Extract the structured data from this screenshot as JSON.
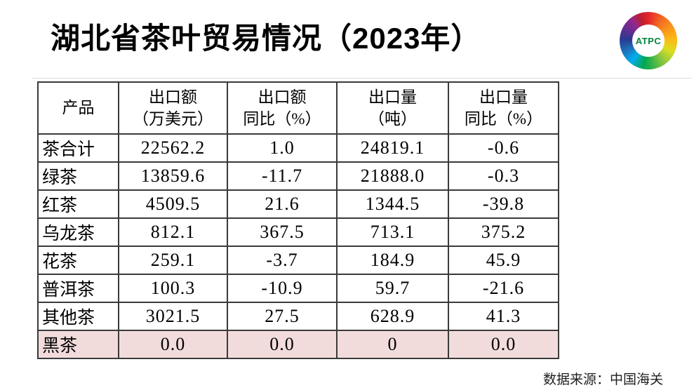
{
  "title": "湖北省茶叶贸易情况（2023年）",
  "logo": {
    "text": "ATPC",
    "text_color": "#00843d"
  },
  "table": {
    "highlight_color": "#f2dcdb",
    "border_color": "#3a3a3a",
    "columns": [
      "产品",
      "出口额\n（万美元）",
      "出口额\n同比（%）",
      "出口量\n（吨）",
      "出口量\n同比（%）"
    ],
    "rows": [
      {
        "product": "茶合计",
        "values": [
          "22562.2",
          "1.0",
          "24819.1",
          "-0.6"
        ],
        "highlight": false
      },
      {
        "product": "绿茶",
        "values": [
          "13859.6",
          "-11.7",
          "21888.0",
          "-0.3"
        ],
        "highlight": false
      },
      {
        "product": "红茶",
        "values": [
          "4509.5",
          "21.6",
          "1344.5",
          "-39.8"
        ],
        "highlight": false
      },
      {
        "product": "乌龙茶",
        "values": [
          "812.1",
          "367.5",
          "713.1",
          "375.2"
        ],
        "highlight": false
      },
      {
        "product": "花茶",
        "values": [
          "259.1",
          "-3.7",
          "184.9",
          "45.9"
        ],
        "highlight": false
      },
      {
        "product": "普洱茶",
        "values": [
          "100.3",
          "-10.9",
          "59.7",
          "-21.6"
        ],
        "highlight": false
      },
      {
        "product": "其他茶",
        "values": [
          "3021.5",
          "27.5",
          "628.9",
          "41.3"
        ],
        "highlight": false
      },
      {
        "product": "黑茶",
        "values": [
          "0.0",
          "0.0",
          "0",
          "0.0"
        ],
        "highlight": true
      }
    ]
  },
  "source": "数据来源：中国海关"
}
